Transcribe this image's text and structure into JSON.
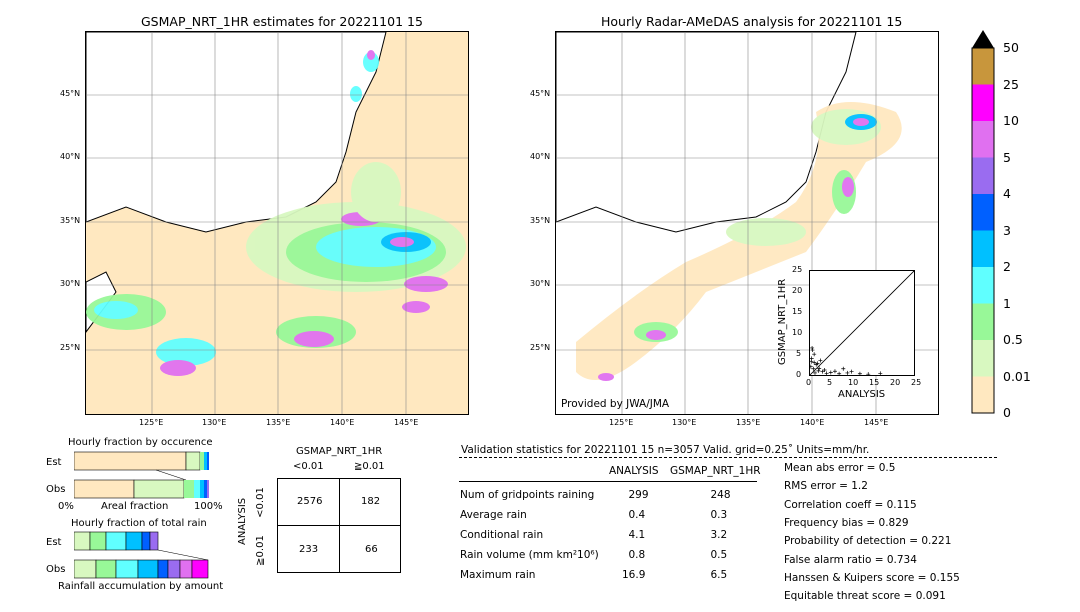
{
  "titles": {
    "left": "GSMAP_NRT_1HR estimates for 20221101 15",
    "right": "Hourly Radar-AMeDAS analysis for 20221101 15"
  },
  "map_axis": {
    "lat_labels": [
      "45°N",
      "40°N",
      "35°N",
      "30°N",
      "25°N"
    ],
    "lon_labels": [
      "125°E",
      "130°E",
      "135°E",
      "140°E",
      "145°E"
    ]
  },
  "credit": "Provided by JWA/JMA",
  "colorbar": {
    "ticks": [
      "50",
      "25",
      "10",
      "5",
      "4",
      "3",
      "2",
      "1",
      "0.5",
      "0.01",
      "0"
    ],
    "colors": [
      "#c8963c",
      "#ff00ff",
      "#e070f0",
      "#9a6cf0",
      "#0060ff",
      "#00c0ff",
      "#60ffff",
      "#98f898",
      "#d8f8c0",
      "#ffe8c0"
    ],
    "colors_top_to_bottom": true
  },
  "scatter": {
    "ylabel": "GSMAP_NRT_1HR",
    "xlabel": "ANALYSIS",
    "ticks": [
      "0",
      "5",
      "10",
      "15",
      "20",
      "25"
    ]
  },
  "fraction_occurrence": {
    "title": "Hourly fraction by occurence",
    "row_labels": [
      "Est",
      "Obs"
    ],
    "axis_left": "0%",
    "axis_mid": "Areal fraction",
    "axis_right": "100%"
  },
  "fraction_total": {
    "title": "Hourly fraction of total rain",
    "row_labels": [
      "Est",
      "Obs"
    ],
    "footer": "Rainfall accumulation by amount"
  },
  "contingency": {
    "title": "GSMAP_NRT_1HR",
    "col_labels": [
      "<0.01",
      "≧0.01"
    ],
    "row_axis": "ANALYSIS",
    "row_labels": [
      "<0.01",
      "≧0.01"
    ],
    "cells": [
      [
        "2576",
        "182"
      ],
      [
        "233",
        "66"
      ]
    ]
  },
  "validation": {
    "header": "Validation statistics for 20221101 15  n=3057 Valid. grid=0.25˚ Units=mm/hr.",
    "col_analysis": "ANALYSIS",
    "col_gsmap": "GSMAP_NRT_1HR",
    "rows": [
      {
        "label": "Num of gridpoints raining",
        "analysis": "299",
        "gsmap": "248"
      },
      {
        "label": "Average rain",
        "analysis": "0.4",
        "gsmap": "0.3"
      },
      {
        "label": "Conditional rain",
        "analysis": "4.1",
        "gsmap": "3.2"
      },
      {
        "label": "Rain volume (mm km²10⁶)",
        "analysis": "0.8",
        "gsmap": "0.5"
      },
      {
        "label": "Maximum rain",
        "analysis": "16.9",
        "gsmap": "6.5"
      }
    ],
    "scores": [
      "Mean abs error =    0.5",
      "RMS error =    1.2",
      "Correlation coeff =  0.115",
      "Frequency bias =  0.829",
      "Probability of detection =  0.221",
      "False alarm ratio =  0.734",
      "Hanssen & Kuipers score =  0.155",
      "Equitable threat score =  0.091"
    ]
  },
  "chart_data": [
    {
      "type": "table",
      "title": "GSMAP_NRT_1HR",
      "columns": [
        "<0.01",
        "≧0.01"
      ],
      "rows": [
        {
          "label": "<0.01",
          "values": [
            2576,
            182
          ]
        },
        {
          "label": "≧0.01",
          "values": [
            233,
            66
          ]
        }
      ]
    },
    {
      "type": "scatter",
      "xlabel": "ANALYSIS",
      "ylabel": "GSMAP_NRT_1HR",
      "xlim": [
        0,
        25
      ],
      "ylim": [
        0,
        25
      ],
      "x": [
        0.2,
        0.4,
        0.6,
        0.8,
        1.0,
        1.2,
        1.5,
        2.0,
        2.5,
        3.0,
        3.5,
        4.0,
        5.0,
        6.0,
        7.0,
        8.0,
        9.0,
        10.0,
        12.0,
        14.0,
        16.9,
        0.5,
        1.0,
        1.8,
        0.3,
        2.2
      ],
      "y": [
        2.0,
        4.0,
        6.0,
        1.5,
        3.0,
        0.5,
        2.5,
        1.0,
        3.5,
        0.8,
        1.2,
        0.4,
        0.6,
        0.9,
        0.3,
        1.5,
        0.5,
        0.8,
        0.3,
        0.2,
        0.4,
        6.5,
        5.0,
        2.8,
        3.2,
        1.6
      ]
    }
  ]
}
